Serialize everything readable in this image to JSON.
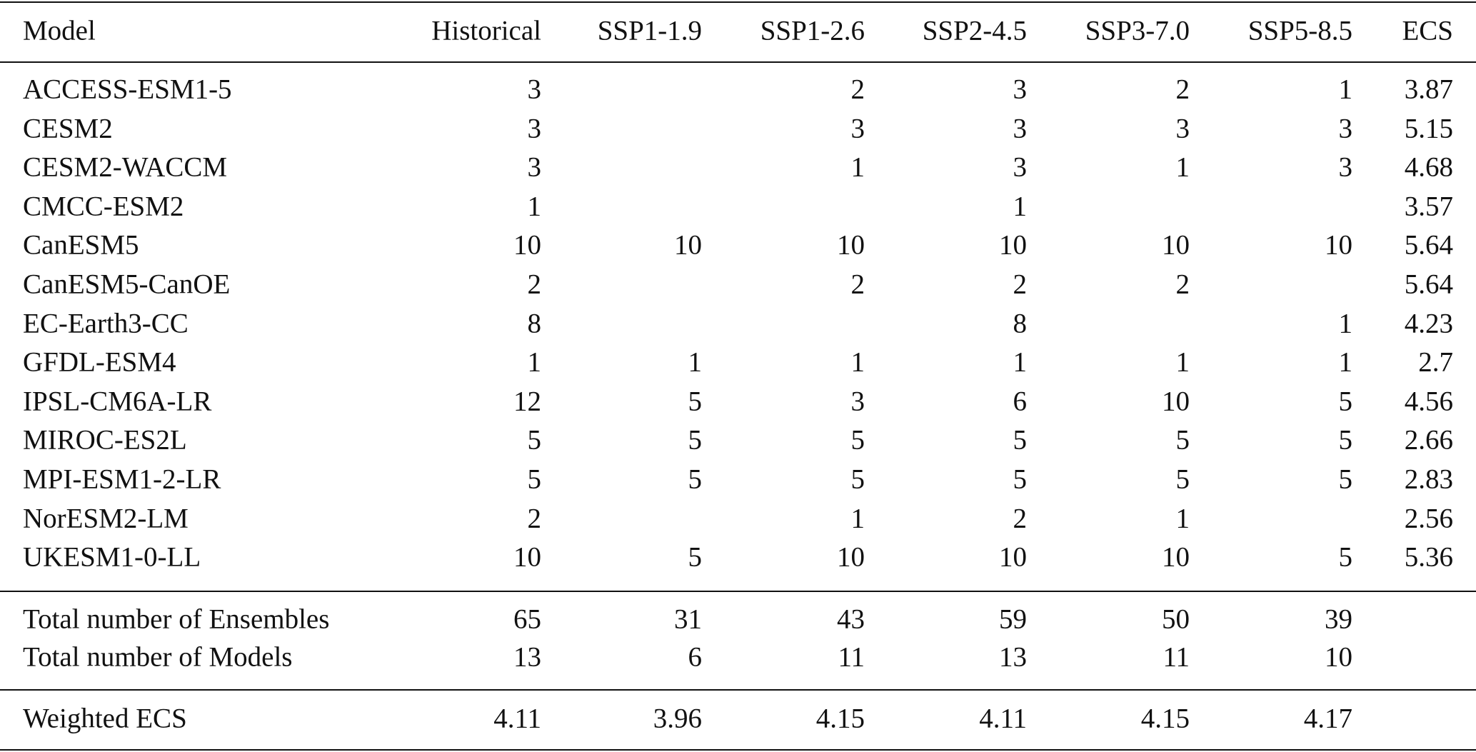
{
  "table": {
    "header": [
      "Model",
      "Historical",
      "SSP1-1.9",
      "SSP1-2.6",
      "SSP2-4.5",
      "SSP3-7.0",
      "SSP5-8.5",
      "ECS"
    ],
    "rows": [
      [
        "ACCESS-ESM1-5",
        3,
        null,
        2,
        3,
        2,
        1,
        3.87
      ],
      [
        "CESM2",
        3,
        null,
        3,
        3,
        3,
        3,
        5.15
      ],
      [
        "CESM2-WACCM",
        3,
        null,
        1,
        3,
        1,
        3,
        4.68
      ],
      [
        "CMCC-ESM2",
        1,
        null,
        null,
        1,
        null,
        null,
        3.57
      ],
      [
        "CanESM5",
        10,
        10,
        10,
        10,
        10,
        10,
        5.64
      ],
      [
        "CanESM5-CanOE",
        2,
        null,
        2,
        2,
        2,
        null,
        5.64
      ],
      [
        "EC-Earth3-CC",
        8,
        null,
        null,
        8,
        null,
        1,
        4.23
      ],
      [
        "GFDL-ESM4",
        1,
        1,
        1,
        1,
        1,
        1,
        2.7
      ],
      [
        "IPSL-CM6A-LR",
        12,
        5,
        3,
        6,
        10,
        5,
        4.56
      ],
      [
        "MIROC-ES2L",
        5,
        5,
        5,
        5,
        5,
        5,
        2.66
      ],
      [
        "MPI-ESM1-2-LR",
        5,
        5,
        5,
        5,
        5,
        5,
        2.83
      ],
      [
        "NorESM2-LM",
        2,
        null,
        1,
        2,
        1,
        null,
        2.56
      ],
      [
        "UKESM1-0-LL",
        10,
        5,
        10,
        10,
        10,
        5,
        5.36
      ]
    ],
    "totals": [
      [
        "Total number of Ensembles",
        65,
        31,
        43,
        59,
        50,
        39,
        null
      ],
      [
        "Total number of Models",
        13,
        6,
        11,
        13,
        11,
        10,
        null
      ]
    ],
    "weighted": [
      "Weighted ECS",
      4.11,
      3.96,
      4.15,
      4.11,
      4.15,
      4.17,
      null
    ]
  }
}
